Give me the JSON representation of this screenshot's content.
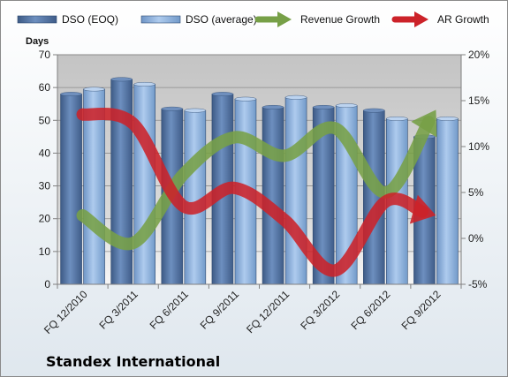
{
  "chart_data": {
    "type": "bar",
    "title": "",
    "company": "Standex International",
    "categories": [
      "FQ 12/2010",
      "FQ 3/2011",
      "FQ 6/2011",
      "FQ 9/2011",
      "FQ 12/2011",
      "FQ 3/2012",
      "FQ 6/2012",
      "FQ 9/2012"
    ],
    "series": [
      {
        "name": "DSO (EOQ)",
        "type": "bar",
        "axis": "left",
        "color": "#4F6E9E",
        "values": [
          58,
          62.5,
          53.5,
          58,
          54,
          54,
          53,
          45
        ]
      },
      {
        "name": "DSO (average)",
        "type": "bar",
        "axis": "left",
        "color": "#8FB3DE",
        "values": [
          59.5,
          61,
          53,
          56.5,
          57,
          54.5,
          50.5,
          50.5
        ]
      },
      {
        "name": "Revenue Growth",
        "type": "line",
        "axis": "right",
        "color": "#77A047",
        "values": [
          2.5,
          -0.5,
          7,
          11,
          9,
          12,
          5,
          14
        ]
      },
      {
        "name": "AR Growth",
        "type": "line",
        "axis": "right",
        "color": "#CC2229",
        "values": [
          13.5,
          12.5,
          3.5,
          5.5,
          2,
          -3.5,
          4,
          2.5
        ]
      }
    ],
    "left_axis": {
      "label": "Days",
      "min": 0,
      "max": 70,
      "ticks": [
        0,
        10,
        20,
        30,
        40,
        50,
        60,
        70
      ]
    },
    "right_axis": {
      "min": -5,
      "max": 20,
      "ticks": [
        "-5%",
        "0%",
        "5%",
        "10%",
        "15%",
        "20%"
      ]
    },
    "grid": true,
    "legend_position": "top"
  }
}
